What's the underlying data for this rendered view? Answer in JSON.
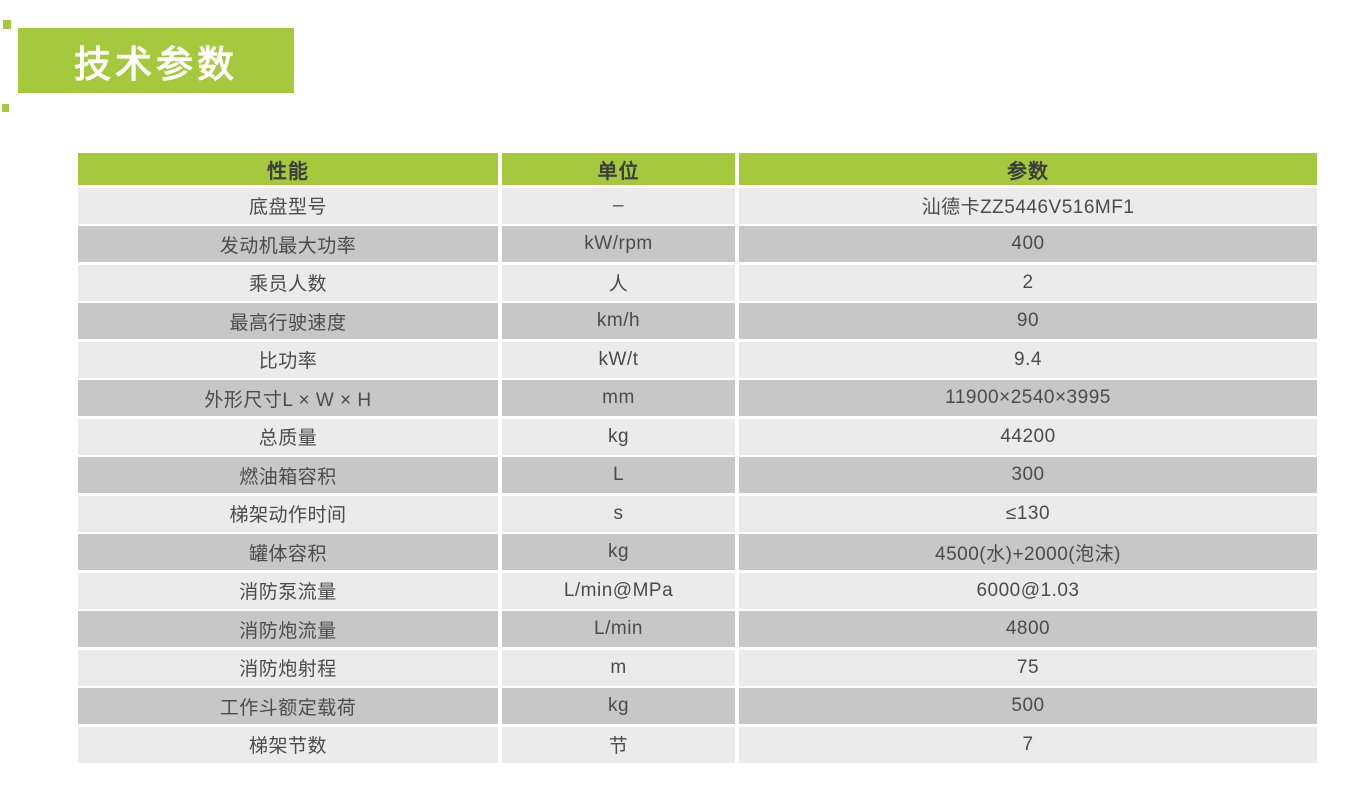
{
  "title_badge": {
    "label": "技术参数"
  },
  "colors": {
    "accent_green": "#a4c93d",
    "row_light": "#ebebeb",
    "row_dark": "#c7c7c7",
    "header_text": "#3c3c3c",
    "cell_text": "#4b4b4b"
  },
  "table": {
    "headers": [
      "性能",
      "单位",
      "参数"
    ],
    "rows": [
      [
        "底盘型号",
        "–",
        "汕德卡ZZ5446V516MF1"
      ],
      [
        "发动机最大功率",
        "kW/rpm",
        "400"
      ],
      [
        "乘员人数",
        "人",
        "2"
      ],
      [
        "最高行驶速度",
        "km/h",
        "90"
      ],
      [
        "比功率",
        "kW/t",
        "9.4"
      ],
      [
        "外形尺寸L × W × H",
        "mm",
        "11900×2540×3995"
      ],
      [
        "总质量",
        "kg",
        "44200"
      ],
      [
        "燃油箱容积",
        "L",
        "300"
      ],
      [
        "梯架动作时间",
        "s",
        "≤130"
      ],
      [
        "罐体容积",
        "kg",
        "4500(水)+2000(泡沫)"
      ],
      [
        "消防泵流量",
        "L/min@MPa",
        "6000@1.03"
      ],
      [
        "消防炮流量",
        "L/min",
        "4800"
      ],
      [
        "消防炮射程",
        "m",
        "75"
      ],
      [
        "工作斗额定载荷",
        "kg",
        "500"
      ],
      [
        "梯架节数",
        "节",
        "7"
      ]
    ]
  }
}
